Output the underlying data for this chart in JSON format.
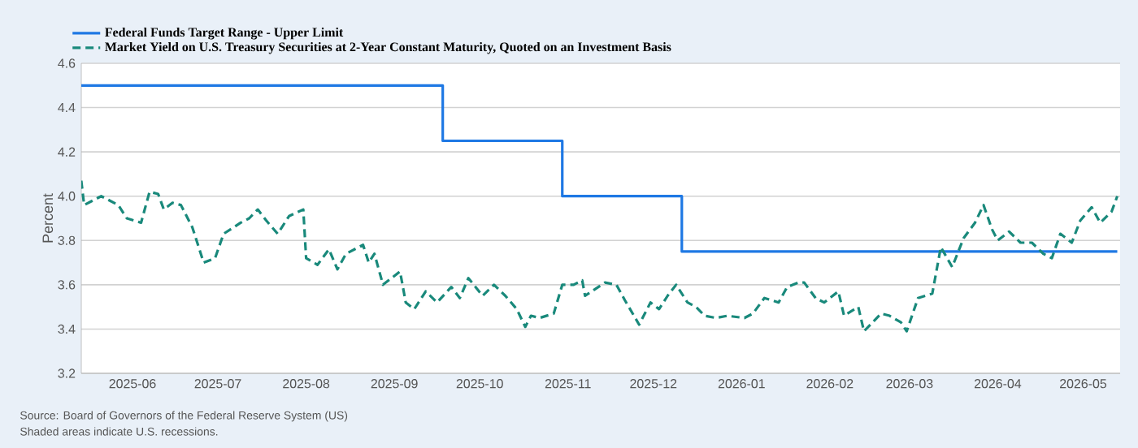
{
  "chart_data": {
    "type": "line",
    "ylabel": "Percent",
    "xlim": [
      "2025-05-14",
      "2026-05-14"
    ],
    "xticks": [
      "2025-06",
      "2025-07",
      "2025-08",
      "2025-09",
      "2025-10",
      "2025-11",
      "2025-12",
      "2026-01",
      "2026-02",
      "2026-03",
      "2026-04",
      "2026-05"
    ],
    "ylim": [
      3.2,
      4.6
    ],
    "yticks": [
      {
        "value": 3.2,
        "label": "3.2"
      },
      {
        "value": 3.4,
        "label": "3.4"
      },
      {
        "value": 3.6,
        "label": "3.6"
      },
      {
        "value": 3.8,
        "label": "3.8"
      },
      {
        "value": 4.0,
        "label": "4.0"
      },
      {
        "value": 4.2,
        "label": "4.2"
      },
      {
        "value": 4.4,
        "label": "4.4"
      },
      {
        "value": 4.6,
        "label": "4.6"
      }
    ],
    "grid": "y",
    "legend": "top",
    "marker": "none",
    "series": [
      {
        "name": "Federal Funds Target Range - Upper Limit",
        "type": "step",
        "color": "#1e78e4",
        "line_style": "solid",
        "x": [
          "2025-05-14",
          "2025-09-18",
          "2025-10-30",
          "2025-12-11",
          "2026-05-13"
        ],
        "values": [
          4.5,
          4.25,
          4.0,
          3.75,
          3.75
        ]
      },
      {
        "name": "Market Yield on U.S. Treasury Securities at 2-Year Constant Maturity, Quoted on an Investment Basis",
        "type": "line",
        "color": "#19897b",
        "line_style": "dashed",
        "x": [
          "2025-05-14",
          "2025-05-15",
          "2025-05-21",
          "2025-05-27",
          "2025-05-30",
          "2025-06-04",
          "2025-06-07",
          "2025-06-10",
          "2025-06-12",
          "2025-06-15",
          "2025-06-18",
          "2025-06-22",
          "2025-06-26",
          "2025-06-30",
          "2025-07-03",
          "2025-07-09",
          "2025-07-12",
          "2025-07-15",
          "2025-07-18",
          "2025-07-22",
          "2025-07-26",
          "2025-07-31",
          "2025-08-01",
          "2025-08-05",
          "2025-08-09",
          "2025-08-12",
          "2025-08-15",
          "2025-08-21",
          "2025-08-23",
          "2025-08-25",
          "2025-08-28",
          "2025-09-03",
          "2025-09-05",
          "2025-09-08",
          "2025-09-12",
          "2025-09-16",
          "2025-09-21",
          "2025-09-24",
          "2025-09-27",
          "2025-10-02",
          "2025-10-06",
          "2025-10-10",
          "2025-10-14",
          "2025-10-17",
          "2025-10-19",
          "2025-10-22",
          "2025-10-27",
          "2025-10-30",
          "2025-11-03",
          "2025-11-06",
          "2025-11-07",
          "2025-11-14",
          "2025-11-18",
          "2025-11-21",
          "2025-11-26",
          "2025-11-30",
          "2025-12-03",
          "2025-12-06",
          "2025-12-09",
          "2025-12-13",
          "2025-12-16",
          "2025-12-19",
          "2025-12-23",
          "2025-12-27",
          "2026-01-02",
          "2026-01-05",
          "2026-01-09",
          "2026-01-14",
          "2026-01-17",
          "2026-01-21",
          "2026-01-23",
          "2026-01-27",
          "2026-01-30",
          "2026-02-04",
          "2026-02-06",
          "2026-02-11",
          "2026-02-13",
          "2026-02-19",
          "2026-02-22",
          "2026-02-26",
          "2026-02-28",
          "2026-03-04",
          "2026-03-09",
          "2026-03-12",
          "2026-03-16",
          "2026-03-20",
          "2026-03-24",
          "2026-03-27",
          "2026-03-30",
          "2026-04-01",
          "2026-04-05",
          "2026-04-09",
          "2026-04-13",
          "2026-04-17",
          "2026-04-20",
          "2026-04-23",
          "2026-04-27",
          "2026-04-30",
          "2026-05-04",
          "2026-05-07",
          "2026-05-11",
          "2026-05-13"
        ],
        "values": [
          4.07,
          3.96,
          4.0,
          3.96,
          3.9,
          3.88,
          4.02,
          4.01,
          3.94,
          3.97,
          3.96,
          3.86,
          3.7,
          3.72,
          3.83,
          3.88,
          3.9,
          3.94,
          3.89,
          3.83,
          3.91,
          3.94,
          3.72,
          3.69,
          3.76,
          3.67,
          3.74,
          3.78,
          3.7,
          3.74,
          3.6,
          3.66,
          3.52,
          3.49,
          3.57,
          3.52,
          3.59,
          3.54,
          3.63,
          3.55,
          3.6,
          3.55,
          3.49,
          3.41,
          3.46,
          3.45,
          3.47,
          3.6,
          3.6,
          3.62,
          3.55,
          3.61,
          3.6,
          3.53,
          3.42,
          3.52,
          3.49,
          3.55,
          3.6,
          3.52,
          3.5,
          3.46,
          3.45,
          3.46,
          3.45,
          3.47,
          3.54,
          3.52,
          3.59,
          3.61,
          3.61,
          3.54,
          3.52,
          3.57,
          3.46,
          3.5,
          3.39,
          3.47,
          3.46,
          3.43,
          3.39,
          3.54,
          3.56,
          3.77,
          3.68,
          3.81,
          3.88,
          3.96,
          3.85,
          3.8,
          3.84,
          3.79,
          3.79,
          3.74,
          3.72,
          3.83,
          3.79,
          3.89,
          3.95,
          3.88,
          3.93,
          4.0
        ]
      }
    ],
    "annotations": [
      "Source: Board of Governors of the Federal Reserve System (US)",
      "Shaded areas indicate U.S. recessions."
    ]
  }
}
